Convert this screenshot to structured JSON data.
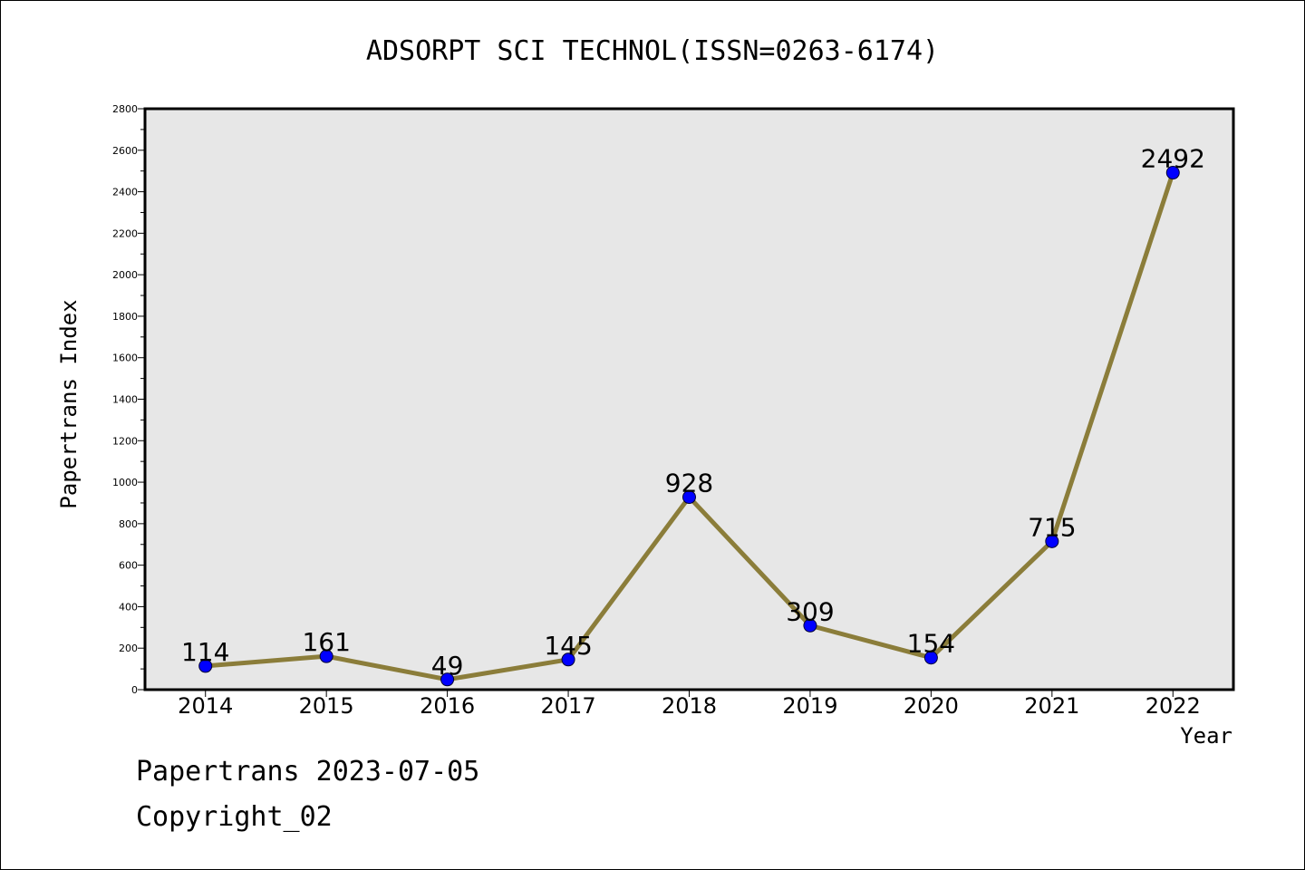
{
  "chart_data": {
    "type": "line",
    "title": "ADSORPT SCI TECHNOL(ISSN=0263-6174)",
    "xlabel": "Year",
    "ylabel": "Papertrans Index",
    "categories": [
      "2014",
      "2015",
      "2016",
      "2017",
      "2018",
      "2019",
      "2020",
      "2021",
      "2022"
    ],
    "values": [
      114,
      161,
      49,
      145,
      928,
      309,
      154,
      715,
      2492
    ],
    "ylim": [
      0,
      2800
    ],
    "yticks": [
      0,
      200,
      400,
      600,
      800,
      1000,
      1200,
      1400,
      1600,
      1800,
      2000,
      2200,
      2400,
      2600,
      2800
    ],
    "grid": false,
    "legend": "none",
    "colors": {
      "line": "#8B7D3A",
      "marker": "#0000FF",
      "plot_background": "#E7E7E7"
    }
  },
  "footer": {
    "date_text": "Papertrans 2023-07-05",
    "copyright": "Copyright_02"
  }
}
